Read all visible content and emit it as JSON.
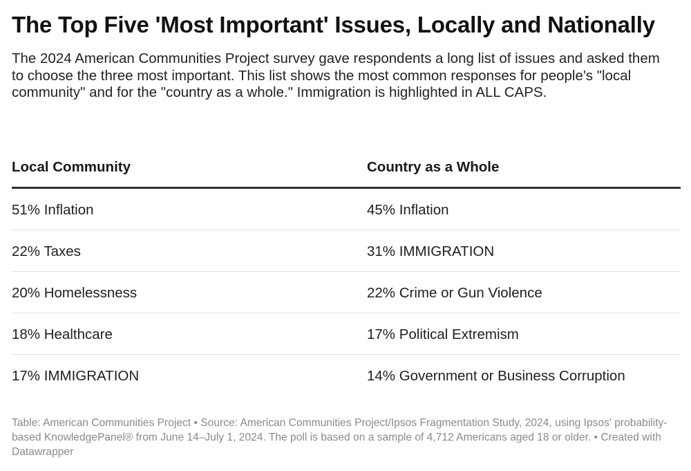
{
  "title": "The Top Five 'Most Important' Issues, Locally and Nationally",
  "subtitle": "The 2024 American Communities Project survey gave respondents a long list of issues and asked them to choose the three most important. This list shows the most common responses for people's \"local community\" and for the \"country as a whole.\" Immigration is highlighted in ALL CAPS.",
  "columns": [
    "Local Community",
    "Country as a Whole"
  ],
  "rows": [
    [
      "51% Inflation",
      "45% Inflation"
    ],
    [
      "22% Taxes",
      "31% IMMIGRATION"
    ],
    [
      "20% Homelessness",
      "22% Crime or Gun Violence"
    ],
    [
      "18% Healthcare",
      "17% Political Extremism"
    ],
    [
      "17% IMMIGRATION",
      "14% Government or Business Corruption"
    ]
  ],
  "footer": "Table: American Communities Project • Source: American Communities Project/Ipsos Fragmentation Study, 2024, using Ipsos' probability-based KnowledgePanel® from June 14–July 1, 2024. The poll is based on a sample of 4,712 Americans aged 18 or older. • Created with Datawrapper",
  "chart_data": {
    "type": "table",
    "columns": [
      "Local Community",
      "Country as a Whole"
    ],
    "series": [
      {
        "name": "Local Community",
        "categories": [
          "Inflation",
          "Taxes",
          "Homelessness",
          "Healthcare",
          "IMMIGRATION"
        ],
        "values": [
          51,
          22,
          20,
          18,
          17
        ]
      },
      {
        "name": "Country as a Whole",
        "categories": [
          "Inflation",
          "IMMIGRATION",
          "Crime or Gun Violence",
          "Political Extremism",
          "Government or Business Corruption"
        ],
        "values": [
          45,
          31,
          22,
          17,
          14
        ]
      }
    ],
    "unit": "%"
  }
}
